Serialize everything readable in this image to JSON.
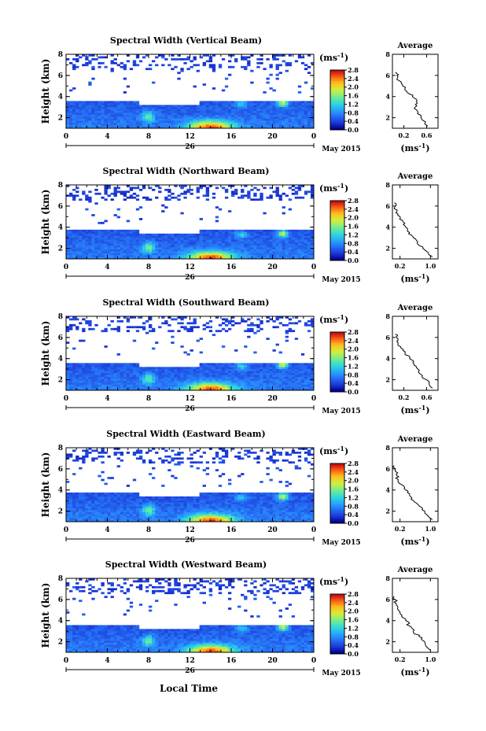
{
  "page": {
    "x_axis_title": "Local Time",
    "colorbar_unit_base": "(ms",
    "colorbar_unit_exp": "-1",
    "colorbar_unit_end": ")",
    "avg_unit_base": "(ms",
    "avg_unit_exp": "-1",
    "avg_unit_end": ")"
  },
  "chart_data": [
    {
      "type": "heatmap",
      "title": "Spectral Width (Vertical Beam)",
      "ylabel": "Height (km)",
      "xlabel": "Local Time",
      "x_ticks": [
        "0",
        "4",
        "8",
        "12",
        "16",
        "20",
        "0"
      ],
      "y_ticks": [
        "2",
        "4",
        "6",
        "8"
      ],
      "xlim": [
        0,
        24
      ],
      "ylim": [
        1,
        8
      ],
      "date_day": "26",
      "date_label": "May 2015",
      "colorbar": {
        "ticks": [
          "0.0",
          "0.4",
          "0.8",
          "1.2",
          "1.6",
          "2.0",
          "2.4",
          "2.8"
        ],
        "range": [
          0,
          2.8
        ]
      },
      "average": {
        "title": "Average",
        "x_ticks": [
          "0.2",
          "0.6"
        ],
        "xlim": [
          0,
          0.8
        ],
        "y_ticks": [
          "2",
          "4",
          "6",
          "8"
        ],
        "heights": [
          1.2,
          2.0,
          2.5,
          3.0,
          3.5,
          4.0,
          4.5,
          5.0,
          5.5,
          6.0,
          6.3
        ],
        "values": [
          0.62,
          0.5,
          0.45,
          0.4,
          0.42,
          0.35,
          0.25,
          0.18,
          0.12,
          0.08,
          0.05
        ]
      }
    },
    {
      "type": "heatmap",
      "title": "Spectral Width (Northward Beam)",
      "ylabel": "Height (km)",
      "xlabel": "Local Time",
      "x_ticks": [
        "0",
        "4",
        "8",
        "12",
        "16",
        "20",
        "0"
      ],
      "y_ticks": [
        "2",
        "4",
        "6",
        "8"
      ],
      "xlim": [
        0,
        24
      ],
      "ylim": [
        1,
        8
      ],
      "date_day": "26",
      "date_label": "May 2015",
      "colorbar": {
        "ticks": [
          "0.0",
          "0.4",
          "0.8",
          "1.2",
          "1.6",
          "2.0",
          "2.4",
          "2.8"
        ],
        "range": [
          0,
          2.8
        ]
      },
      "average": {
        "title": "Average",
        "x_ticks": [
          "0.2",
          "1.0"
        ],
        "xlim": [
          0,
          1.2
        ],
        "y_ticks": [
          "2",
          "4",
          "6",
          "8"
        ],
        "heights": [
          1.2,
          2.0,
          2.5,
          3.0,
          3.5,
          4.0,
          4.5,
          5.0,
          5.5,
          6.0,
          6.3
        ],
        "values": [
          1.05,
          0.8,
          0.65,
          0.55,
          0.45,
          0.35,
          0.28,
          0.2,
          0.12,
          0.08,
          0.05
        ]
      }
    },
    {
      "type": "heatmap",
      "title": "Spectral Width (Southward Beam)",
      "ylabel": "Height (km)",
      "xlabel": "Local Time",
      "x_ticks": [
        "0",
        "4",
        "8",
        "12",
        "16",
        "20",
        "0"
      ],
      "y_ticks": [
        "2",
        "4",
        "6",
        "8"
      ],
      "xlim": [
        0,
        24
      ],
      "ylim": [
        1,
        8
      ],
      "date_day": "26",
      "date_label": "May 2015",
      "colorbar": {
        "ticks": [
          "0.0",
          "0.4",
          "0.8",
          "1.2",
          "1.6",
          "2.0",
          "2.4",
          "2.8"
        ],
        "range": [
          0,
          2.8
        ]
      },
      "average": {
        "title": "Average",
        "x_ticks": [
          "0.2",
          "0.6"
        ],
        "xlim": [
          0,
          0.8
        ],
        "y_ticks": [
          "2",
          "4",
          "6",
          "8"
        ],
        "heights": [
          1.2,
          2.0,
          2.5,
          3.0,
          3.5,
          4.0,
          4.5,
          5.0,
          5.5,
          6.0,
          6.3
        ],
        "values": [
          0.7,
          0.6,
          0.5,
          0.45,
          0.38,
          0.3,
          0.22,
          0.15,
          0.1,
          0.07,
          0.05
        ]
      }
    },
    {
      "type": "heatmap",
      "title": "Spectral Width (Eastward Beam)",
      "ylabel": "Height (km)",
      "xlabel": "Local Time",
      "x_ticks": [
        "0",
        "4",
        "8",
        "12",
        "16",
        "20",
        "0"
      ],
      "y_ticks": [
        "2",
        "4",
        "6",
        "8"
      ],
      "xlim": [
        0,
        24
      ],
      "ylim": [
        1,
        8
      ],
      "date_day": "26",
      "date_label": "May 2015",
      "colorbar": {
        "ticks": [
          "0.0",
          "0.4",
          "0.8",
          "1.2",
          "1.6",
          "2.0",
          "2.4",
          "2.8"
        ],
        "range": [
          0,
          2.8
        ]
      },
      "average": {
        "title": "Average",
        "x_ticks": [
          "0.2",
          "1.0"
        ],
        "xlim": [
          0,
          1.2
        ],
        "y_ticks": [
          "2",
          "4",
          "6",
          "8"
        ],
        "heights": [
          1.2,
          2.0,
          2.5,
          3.0,
          3.5,
          4.0,
          4.5,
          5.0,
          5.5,
          6.0,
          6.3
        ],
        "values": [
          1.05,
          0.85,
          0.7,
          0.55,
          0.45,
          0.35,
          0.25,
          0.15,
          0.1,
          0.08,
          0.05
        ]
      }
    },
    {
      "type": "heatmap",
      "title": "Spectral Width (Westward Beam)",
      "ylabel": "Height (km)",
      "xlabel": "Local Time",
      "x_ticks": [
        "0",
        "4",
        "8",
        "12",
        "16",
        "20",
        "0"
      ],
      "y_ticks": [
        "2",
        "4",
        "6",
        "8"
      ],
      "xlim": [
        0,
        24
      ],
      "ylim": [
        1,
        8
      ],
      "date_day": "26",
      "date_label": "May 2015",
      "colorbar": {
        "ticks": [
          "0.0",
          "0.4",
          "0.8",
          "1.2",
          "1.6",
          "2.0",
          "2.4",
          "2.8"
        ],
        "range": [
          0,
          2.8
        ]
      },
      "average": {
        "title": "Average",
        "x_ticks": [
          "0.2",
          "1.0"
        ],
        "xlim": [
          0,
          1.2
        ],
        "y_ticks": [
          "2",
          "4",
          "6",
          "8"
        ],
        "heights": [
          1.2,
          2.0,
          2.5,
          3.0,
          3.5,
          4.0,
          4.5,
          5.0,
          5.5,
          6.0,
          6.3
        ],
        "values": [
          1.0,
          0.85,
          0.7,
          0.55,
          0.45,
          0.35,
          0.25,
          0.15,
          0.1,
          0.07,
          0.05
        ]
      }
    }
  ]
}
